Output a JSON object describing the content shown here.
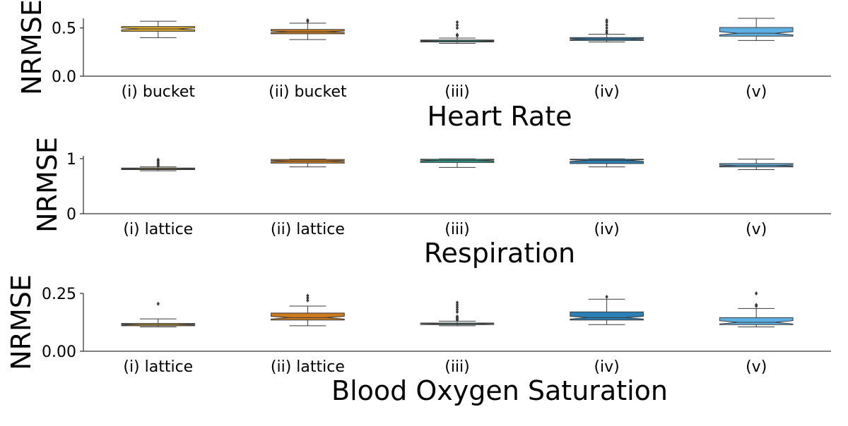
{
  "chart_data": [
    {
      "type": "box",
      "title": "",
      "xlabel": "Heart Rate",
      "ylabel": "NRMSE",
      "ylim": [
        0,
        0.6
      ],
      "yticks": [
        0.0,
        0.5
      ],
      "ytick_labels": [
        "0.0",
        "0.5"
      ],
      "categories": [
        "(i) bucket",
        "(ii) bucket",
        "(iii)",
        "(iv)",
        "(v)"
      ],
      "colors": [
        "#d9a52b",
        "#cc7a1e",
        "#2a9d8a",
        "#2a7fb5",
        "#5fb0e2"
      ],
      "boxes": [
        {
          "whislo": 0.4,
          "q1": 0.465,
          "med": 0.49,
          "q3": 0.515,
          "whishi": 0.57,
          "notch_lo": 0.48,
          "notch_hi": 0.5,
          "fliers": []
        },
        {
          "whislo": 0.38,
          "q1": 0.44,
          "med": 0.46,
          "q3": 0.485,
          "whishi": 0.55,
          "notch_lo": 0.452,
          "notch_hi": 0.468,
          "fliers": [
            0.57,
            0.58
          ]
        },
        {
          "whislo": 0.34,
          "q1": 0.355,
          "med": 0.365,
          "q3": 0.375,
          "whishi": 0.395,
          "notch_lo": 0.361,
          "notch_hi": 0.369,
          "fliers": [
            0.42,
            0.43,
            0.5,
            0.53,
            0.56
          ]
        },
        {
          "whislo": 0.355,
          "q1": 0.37,
          "med": 0.385,
          "q3": 0.4,
          "whishi": 0.435,
          "notch_lo": 0.38,
          "notch_hi": 0.39,
          "fliers": [
            0.45,
            0.47,
            0.5,
            0.53,
            0.56,
            0.58
          ]
        },
        {
          "whislo": 0.37,
          "q1": 0.415,
          "med": 0.445,
          "q3": 0.505,
          "whishi": 0.6,
          "notch_lo": 0.428,
          "notch_hi": 0.462,
          "fliers": []
        }
      ]
    },
    {
      "type": "box",
      "title": "",
      "xlabel": "Respiration",
      "ylabel": "NRMSE",
      "ylim": [
        0,
        1.05
      ],
      "yticks": [
        0,
        1
      ],
      "ytick_labels": [
        "0",
        "1"
      ],
      "categories": [
        "(i) lattice",
        "(ii) lattice",
        "(iii)",
        "(iv)",
        "(v)"
      ],
      "colors": [
        "#d9a52b",
        "#cc7a1e",
        "#2a9d8a",
        "#2a7fb5",
        "#5fb0e2"
      ],
      "boxes": [
        {
          "whislo": 0.78,
          "q1": 0.8,
          "med": 0.815,
          "q3": 0.83,
          "whishi": 0.85,
          "notch_lo": 0.81,
          "notch_hi": 0.82,
          "fliers": [
            0.87,
            0.9,
            0.93,
            0.96,
            0.98
          ]
        },
        {
          "whislo": 0.85,
          "q1": 0.92,
          "med": 0.955,
          "q3": 0.985,
          "whishi": 0.99,
          "notch_lo": 0.945,
          "notch_hi": 0.965,
          "fliers": []
        },
        {
          "whislo": 0.84,
          "q1": 0.93,
          "med": 0.965,
          "q3": 0.99,
          "whishi": 0.995,
          "notch_lo": 0.955,
          "notch_hi": 0.975,
          "fliers": []
        },
        {
          "whislo": 0.85,
          "q1": 0.91,
          "med": 0.965,
          "q3": 0.99,
          "whishi": 0.995,
          "notch_lo": 0.95,
          "notch_hi": 0.98,
          "fliers": []
        },
        {
          "whislo": 0.8,
          "q1": 0.85,
          "med": 0.875,
          "q3": 0.91,
          "whishi": 0.99,
          "notch_lo": 0.865,
          "notch_hi": 0.885,
          "fliers": []
        }
      ]
    },
    {
      "type": "box",
      "title": "",
      "xlabel": "Blood Oxygen Saturation",
      "ylabel": "NRMSE",
      "ylim": [
        0,
        0.25
      ],
      "yticks": [
        0.0,
        0.25
      ],
      "ytick_labels": [
        "0.00",
        "0.25"
      ],
      "categories": [
        "(i) lattice",
        "(ii) lattice",
        "(iii)",
        "(iv)",
        "(v)"
      ],
      "colors": [
        "#d9a52b",
        "#cc7a1e",
        "#2a9d8a",
        "#2a7fb5",
        "#5fb0e2"
      ],
      "boxes": [
        {
          "whislo": 0.105,
          "q1": 0.11,
          "med": 0.115,
          "q3": 0.12,
          "whishi": 0.14,
          "notch_lo": 0.113,
          "notch_hi": 0.117,
          "fliers": [
            0.205
          ]
        },
        {
          "whislo": 0.11,
          "q1": 0.135,
          "med": 0.145,
          "q3": 0.165,
          "whishi": 0.195,
          "notch_lo": 0.139,
          "notch_hi": 0.151,
          "fliers": [
            0.22,
            0.23,
            0.24
          ]
        },
        {
          "whislo": 0.11,
          "q1": 0.115,
          "med": 0.118,
          "q3": 0.122,
          "whishi": 0.13,
          "notch_lo": 0.116,
          "notch_hi": 0.12,
          "fliers": [
            0.135,
            0.14,
            0.145,
            0.15,
            0.17,
            0.18,
            0.19,
            0.2,
            0.21
          ]
        },
        {
          "whislo": 0.115,
          "q1": 0.135,
          "med": 0.145,
          "q3": 0.17,
          "whishi": 0.225,
          "notch_lo": 0.139,
          "notch_hi": 0.151,
          "fliers": [
            0.235
          ]
        },
        {
          "whislo": 0.105,
          "q1": 0.115,
          "med": 0.125,
          "q3": 0.145,
          "whishi": 0.185,
          "notch_lo": 0.118,
          "notch_hi": 0.132,
          "fliers": [
            0.195,
            0.2,
            0.25
          ]
        }
      ]
    }
  ]
}
